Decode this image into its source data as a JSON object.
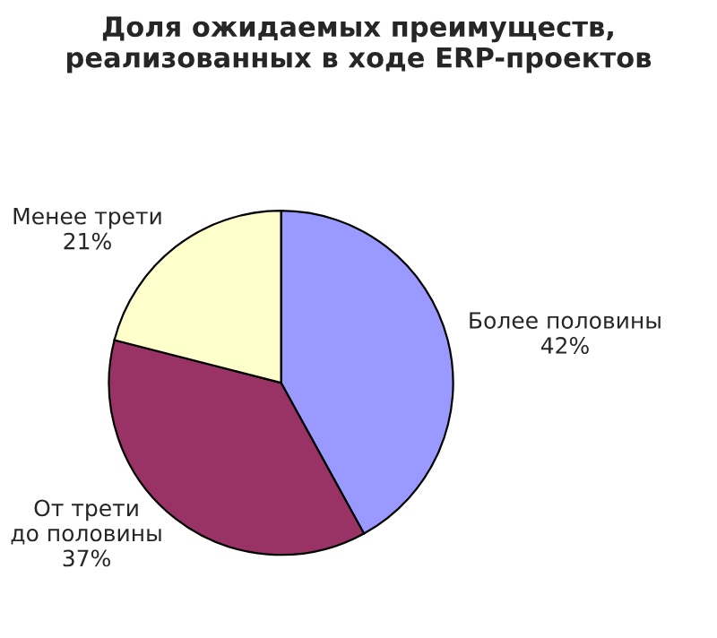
{
  "chart_data": {
    "type": "pie",
    "title": "Доля ожидаемых преимуществ,\nреализованных в ходе ERP-проектов",
    "categories": [
      "Более половины",
      "От трети\nдо половины",
      "Менее трети"
    ],
    "values": [
      42,
      37,
      21
    ],
    "value_labels": [
      "42%",
      "37%",
      "21%"
    ],
    "colors": [
      "#9999ff",
      "#993366",
      "#ffffcc"
    ]
  }
}
